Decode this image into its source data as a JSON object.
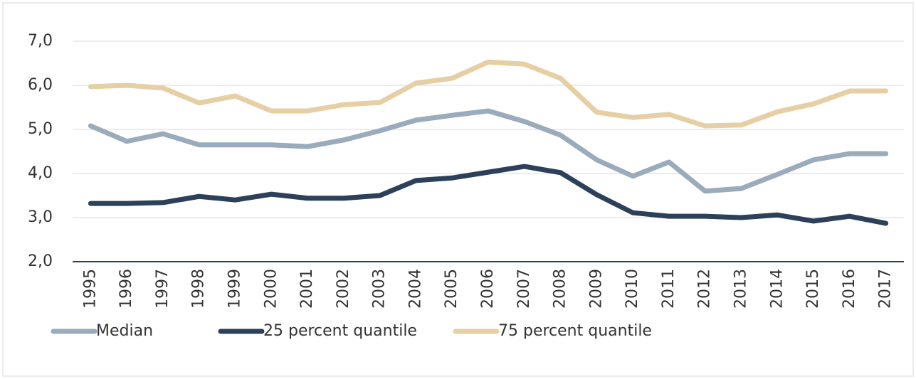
{
  "chart_data": {
    "type": "line",
    "categories": [
      "1995",
      "1996",
      "1997",
      "1998",
      "1999",
      "2000",
      "2001",
      "2002",
      "2003",
      "2004",
      "2005",
      "2006",
      "2007",
      "2008",
      "2009",
      "2010",
      "2011",
      "2012",
      "2013",
      "2014",
      "2015",
      "2016",
      "2017"
    ],
    "series": [
      {
        "name": "Median",
        "color": "#9aabbb",
        "values": [
          5.08,
          4.73,
          4.9,
          4.65,
          4.65,
          4.65,
          4.61,
          4.76,
          4.97,
          5.21,
          5.32,
          5.42,
          5.18,
          4.87,
          4.31,
          3.94,
          4.26,
          3.6,
          3.66,
          3.98,
          4.31,
          4.45,
          4.45
        ]
      },
      {
        "name": "25 percent quantile",
        "color": "#2c4159",
        "values": [
          3.32,
          3.32,
          3.34,
          3.48,
          3.4,
          3.53,
          3.44,
          3.44,
          3.5,
          3.84,
          3.9,
          4.03,
          4.16,
          4.02,
          3.52,
          3.11,
          3.03,
          3.03,
          3.0,
          3.06,
          2.92,
          3.03,
          2.87
        ]
      },
      {
        "name": "75 percent quantile",
        "color": "#e6cfa4",
        "values": [
          5.97,
          6.0,
          5.94,
          5.6,
          5.76,
          5.42,
          5.42,
          5.56,
          5.61,
          6.05,
          6.16,
          6.53,
          6.48,
          6.16,
          5.39,
          5.27,
          5.34,
          5.08,
          5.1,
          5.4,
          5.58,
          5.87,
          5.87
        ]
      }
    ],
    "ylim": [
      2,
      7
    ],
    "yticks": [
      {
        "value": 2,
        "label": "2,0"
      },
      {
        "value": 3,
        "label": "3,0"
      },
      {
        "value": 4,
        "label": "4,0"
      },
      {
        "value": 5,
        "label": "5,0"
      },
      {
        "value": 6,
        "label": "6,0"
      },
      {
        "value": 7,
        "label": "7,0"
      }
    ],
    "grid": true
  }
}
